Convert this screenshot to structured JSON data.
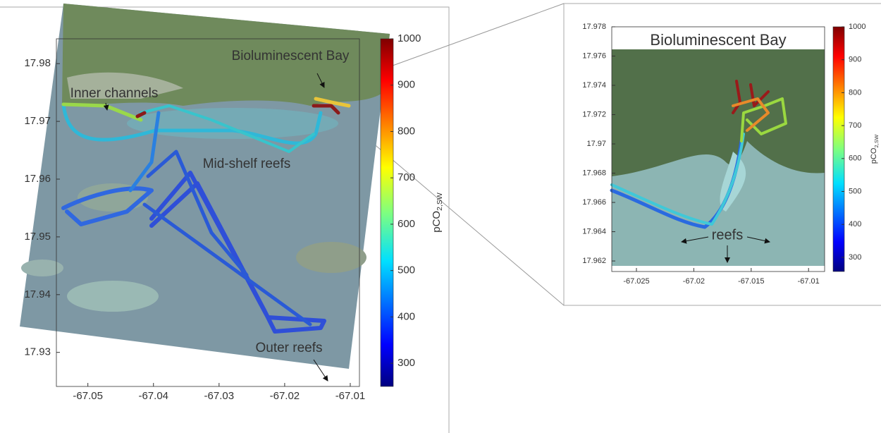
{
  "panels": [
    {
      "xlim": [
        -67.0548,
        -67.0086
      ],
      "ylim": [
        17.9241,
        17.9843
      ],
      "xticks": [
        -67.05,
        -67.04,
        -67.03,
        -67.02,
        -67.01
      ],
      "yticks": [
        17.93,
        17.94,
        17.95,
        17.96,
        17.97,
        17.98
      ],
      "colorbar": {
        "lim": [
          250,
          1000
        ],
        "ticks": [
          300,
          400,
          500,
          600,
          700,
          800,
          900,
          1000
        ],
        "label": "pCO",
        "label_subscript": "2,SW"
      },
      "annotations": [
        "Bioluminescent Bay",
        "Inner channels",
        "Mid-shelf reefs",
        "Outer reefs"
      ]
    },
    {
      "title": "Bioluminescent Bay",
      "xlim": [
        -67.02715,
        -67.0086
      ],
      "ylim": [
        17.96128,
        17.978
      ],
      "xticks": [
        -67.025,
        -67.02,
        -67.015,
        -67.01
      ],
      "yticks": [
        17.962,
        17.964,
        17.966,
        17.968,
        17.97,
        17.972,
        17.974,
        17.976,
        17.978
      ],
      "colorbar": {
        "lim": [
          257,
          1000
        ],
        "ticks": [
          300,
          400,
          500,
          600,
          700,
          800,
          900,
          1000
        ],
        "label": "pCO",
        "label_subscript": "2,SW"
      },
      "annotations": [
        "reefs"
      ]
    }
  ]
}
